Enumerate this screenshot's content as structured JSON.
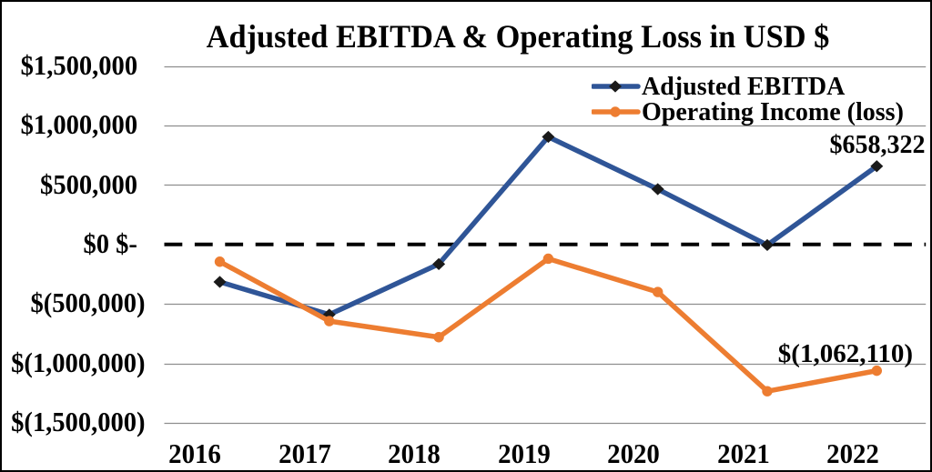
{
  "chart": {
    "title": "Adjusted EBITDA & Operating Loss in USD $"
  },
  "chart_data": {
    "type": "line",
    "title": "Adjusted EBITDA & Operating Loss in USD $",
    "categories": [
      "2016",
      "2017",
      "2018",
      "2019",
      "2020",
      "2021",
      "2022"
    ],
    "series": [
      {
        "name": "Adjusted EBITDA",
        "color": "#2F5597",
        "marker": "diamond",
        "marker_color": "#1A1A1A",
        "values": [
          -315000,
          -590000,
          -165000,
          905000,
          465000,
          -5000,
          658322
        ]
      },
      {
        "name": "Operating Income (loss)",
        "color": "#ED7D31",
        "marker": "circle",
        "marker_color": "#ED7D31",
        "values": [
          -145000,
          -645000,
          -780000,
          -120000,
          -400000,
          -1235000,
          -1062110
        ]
      }
    ],
    "y_axis": {
      "min": -1500000,
      "max": 1500000,
      "tick_step": 500000,
      "tick_values": [
        1500000,
        1000000,
        500000,
        0,
        -500000,
        -1000000,
        -1500000
      ],
      "tick_labels": [
        "$1,500,000",
        "$1,000,000",
        "$500,000",
        "$0 $-",
        "$(500,000)",
        "$(1,000,000)",
        "$(1,500,000)"
      ]
    },
    "zero_line": {
      "style": "dashed",
      "color": "#000000"
    },
    "gridline_color": "#8E8E8E",
    "legend_position": "inside-top-right",
    "grid": true,
    "data_labels": [
      {
        "series": "Adjusted EBITDA",
        "category": "2022",
        "text": "$658,322"
      },
      {
        "series": "Operating Income (loss)",
        "category": "2022",
        "text": "$(1,062,110)"
      }
    ]
  }
}
